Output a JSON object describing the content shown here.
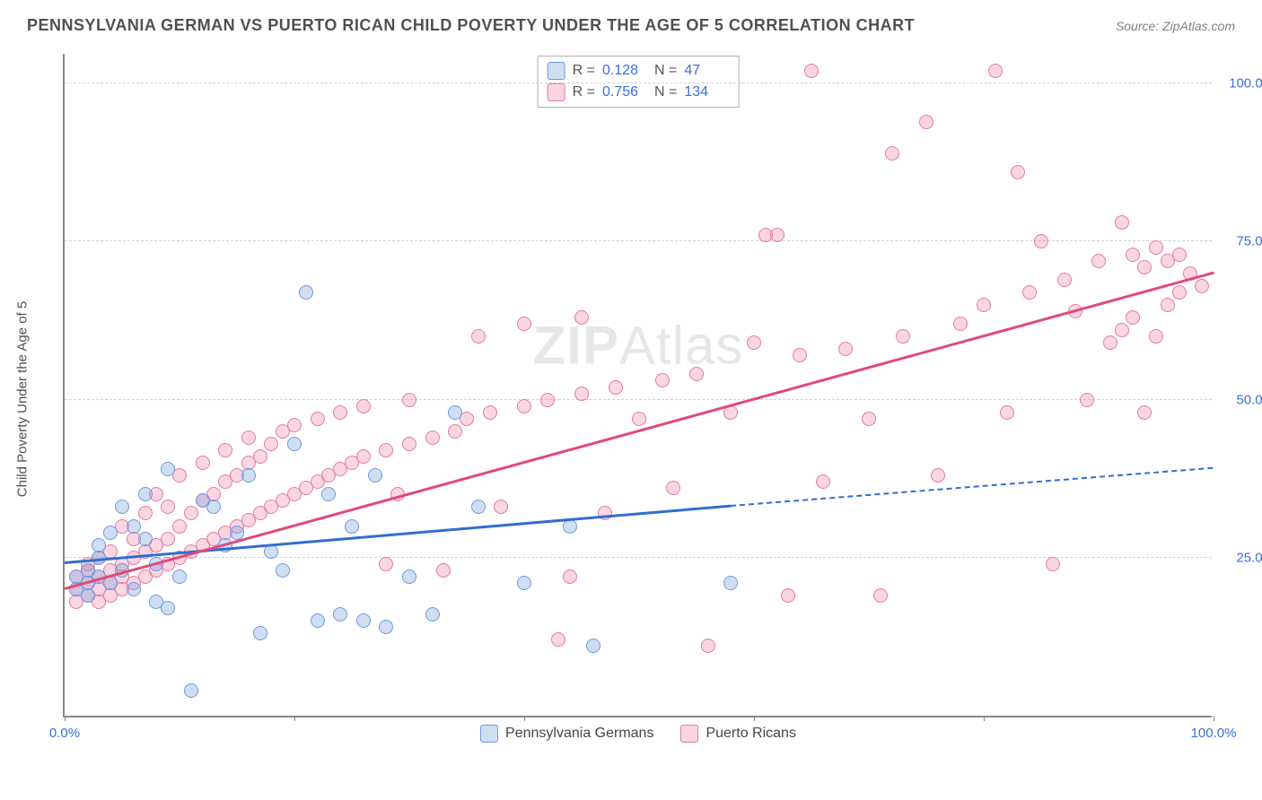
{
  "header": {
    "title": "PENNSYLVANIA GERMAN VS PUERTO RICAN CHILD POVERTY UNDER THE AGE OF 5 CORRELATION CHART",
    "source_prefix": "Source: ",
    "source_name": "ZipAtlas.com"
  },
  "watermark": {
    "zip": "ZIP",
    "atlas": "Atlas"
  },
  "chart": {
    "type": "scatter",
    "y_axis_label": "Child Poverty Under the Age of 5",
    "xlim": [
      0,
      100
    ],
    "ylim": [
      0,
      105
    ],
    "x_ticks": [
      0,
      20,
      40,
      60,
      80,
      100
    ],
    "x_tick_labels": {
      "0": "0.0%",
      "100": "100.0%"
    },
    "y_ticks": [
      25,
      50,
      75,
      100
    ],
    "y_tick_labels": {
      "25": "25.0%",
      "50": "50.0%",
      "75": "75.0%",
      "100": "100.0%"
    },
    "grid_color": "#d0d0d0",
    "background_color": "#ffffff",
    "axis_color": "#888888",
    "label_color": "#3a6fd8",
    "marker_radius": 8,
    "marker_stroke_width": 1.5,
    "series": [
      {
        "name": "Pennsylvania Germans",
        "fill_color": "rgba(120,160,220,0.35)",
        "stroke_color": "#6a9be0",
        "trend_color": "#2f6fd0",
        "trend_line_width": 2.5,
        "R": "0.128",
        "N": "47",
        "trend": {
          "x1": 0,
          "y1": 24,
          "x2": 58,
          "y2": 33,
          "extend_x2": 100,
          "extend_y2": 39
        },
        "points": [
          [
            1,
            20
          ],
          [
            1,
            22
          ],
          [
            2,
            23
          ],
          [
            2,
            21
          ],
          [
            2,
            19
          ],
          [
            3,
            22
          ],
          [
            3,
            25
          ],
          [
            3,
            27
          ],
          [
            4,
            21
          ],
          [
            4,
            29
          ],
          [
            5,
            23
          ],
          [
            5,
            33
          ],
          [
            6,
            20
          ],
          [
            6,
            30
          ],
          [
            7,
            35
          ],
          [
            7,
            28
          ],
          [
            8,
            24
          ],
          [
            8,
            18
          ],
          [
            9,
            39
          ],
          [
            9,
            17
          ],
          [
            10,
            22
          ],
          [
            11,
            4
          ],
          [
            12,
            34
          ],
          [
            13,
            33
          ],
          [
            14,
            27
          ],
          [
            15,
            29
          ],
          [
            16,
            38
          ],
          [
            17,
            13
          ],
          [
            18,
            26
          ],
          [
            19,
            23
          ],
          [
            20,
            43
          ],
          [
            21,
            67
          ],
          [
            22,
            15
          ],
          [
            23,
            35
          ],
          [
            24,
            16
          ],
          [
            25,
            30
          ],
          [
            26,
            15
          ],
          [
            27,
            38
          ],
          [
            28,
            14
          ],
          [
            30,
            22
          ],
          [
            32,
            16
          ],
          [
            34,
            48
          ],
          [
            36,
            33
          ],
          [
            40,
            21
          ],
          [
            44,
            30
          ],
          [
            46,
            11
          ],
          [
            58,
            21
          ]
        ]
      },
      {
        "name": "Puerto Ricans",
        "fill_color": "rgba(235,120,160,0.30)",
        "stroke_color": "#e67aa0",
        "trend_color": "#e04a7a",
        "trend_line_width": 2.5,
        "R": "0.756",
        "N": "134",
        "trend": {
          "x1": 0,
          "y1": 20,
          "x2": 100,
          "y2": 70
        },
        "points": [
          [
            1,
            18
          ],
          [
            1,
            20
          ],
          [
            1,
            22
          ],
          [
            2,
            19
          ],
          [
            2,
            21
          ],
          [
            2,
            23
          ],
          [
            2,
            24
          ],
          [
            3,
            18
          ],
          [
            3,
            20
          ],
          [
            3,
            22
          ],
          [
            3,
            25
          ],
          [
            4,
            19
          ],
          [
            4,
            21
          ],
          [
            4,
            23
          ],
          [
            4,
            26
          ],
          [
            5,
            20
          ],
          [
            5,
            22
          ],
          [
            5,
            24
          ],
          [
            5,
            30
          ],
          [
            6,
            21
          ],
          [
            6,
            25
          ],
          [
            6,
            28
          ],
          [
            7,
            22
          ],
          [
            7,
            26
          ],
          [
            7,
            32
          ],
          [
            8,
            23
          ],
          [
            8,
            27
          ],
          [
            8,
            35
          ],
          [
            9,
            24
          ],
          [
            9,
            28
          ],
          [
            9,
            33
          ],
          [
            10,
            25
          ],
          [
            10,
            30
          ],
          [
            10,
            38
          ],
          [
            11,
            26
          ],
          [
            11,
            32
          ],
          [
            12,
            27
          ],
          [
            12,
            34
          ],
          [
            12,
            40
          ],
          [
            13,
            28
          ],
          [
            13,
            35
          ],
          [
            14,
            29
          ],
          [
            14,
            37
          ],
          [
            14,
            42
          ],
          [
            15,
            30
          ],
          [
            15,
            38
          ],
          [
            16,
            31
          ],
          [
            16,
            40
          ],
          [
            16,
            44
          ],
          [
            17,
            32
          ],
          [
            17,
            41
          ],
          [
            18,
            33
          ],
          [
            18,
            43
          ],
          [
            19,
            34
          ],
          [
            19,
            45
          ],
          [
            20,
            35
          ],
          [
            20,
            46
          ],
          [
            21,
            36
          ],
          [
            22,
            37
          ],
          [
            22,
            47
          ],
          [
            23,
            38
          ],
          [
            24,
            39
          ],
          [
            24,
            48
          ],
          [
            25,
            40
          ],
          [
            26,
            41
          ],
          [
            26,
            49
          ],
          [
            28,
            24
          ],
          [
            28,
            42
          ],
          [
            29,
            35
          ],
          [
            30,
            43
          ],
          [
            30,
            50
          ],
          [
            32,
            44
          ],
          [
            33,
            23
          ],
          [
            34,
            45
          ],
          [
            35,
            47
          ],
          [
            36,
            60
          ],
          [
            37,
            48
          ],
          [
            38,
            33
          ],
          [
            40,
            49
          ],
          [
            40,
            62
          ],
          [
            42,
            50
          ],
          [
            43,
            12
          ],
          [
            44,
            22
          ],
          [
            45,
            51
          ],
          [
            45,
            63
          ],
          [
            47,
            32
          ],
          [
            48,
            52
          ],
          [
            50,
            47
          ],
          [
            52,
            53
          ],
          [
            53,
            36
          ],
          [
            55,
            54
          ],
          [
            56,
            11
          ],
          [
            58,
            48
          ],
          [
            60,
            59
          ],
          [
            61,
            76
          ],
          [
            62,
            76
          ],
          [
            63,
            19
          ],
          [
            64,
            57
          ],
          [
            65,
            102
          ],
          [
            66,
            37
          ],
          [
            68,
            58
          ],
          [
            70,
            47
          ],
          [
            71,
            19
          ],
          [
            72,
            89
          ],
          [
            73,
            60
          ],
          [
            75,
            94
          ],
          [
            76,
            38
          ],
          [
            78,
            62
          ],
          [
            80,
            65
          ],
          [
            81,
            102
          ],
          [
            82,
            48
          ],
          [
            83,
            86
          ],
          [
            84,
            67
          ],
          [
            85,
            75
          ],
          [
            86,
            24
          ],
          [
            87,
            69
          ],
          [
            88,
            64
          ],
          [
            89,
            50
          ],
          [
            90,
            72
          ],
          [
            91,
            59
          ],
          [
            92,
            61
          ],
          [
            92,
            78
          ],
          [
            93,
            73
          ],
          [
            93,
            63
          ],
          [
            94,
            71
          ],
          [
            94,
            48
          ],
          [
            95,
            74
          ],
          [
            95,
            60
          ],
          [
            96,
            72
          ],
          [
            96,
            65
          ],
          [
            97,
            67
          ],
          [
            97,
            73
          ],
          [
            98,
            70
          ],
          [
            99,
            68
          ]
        ]
      }
    ],
    "legend_top": {
      "r_label": "R =",
      "n_label": "N ="
    },
    "legend_bottom": {
      "series1_label": "Pennsylvania Germans",
      "series2_label": "Puerto Ricans"
    }
  }
}
